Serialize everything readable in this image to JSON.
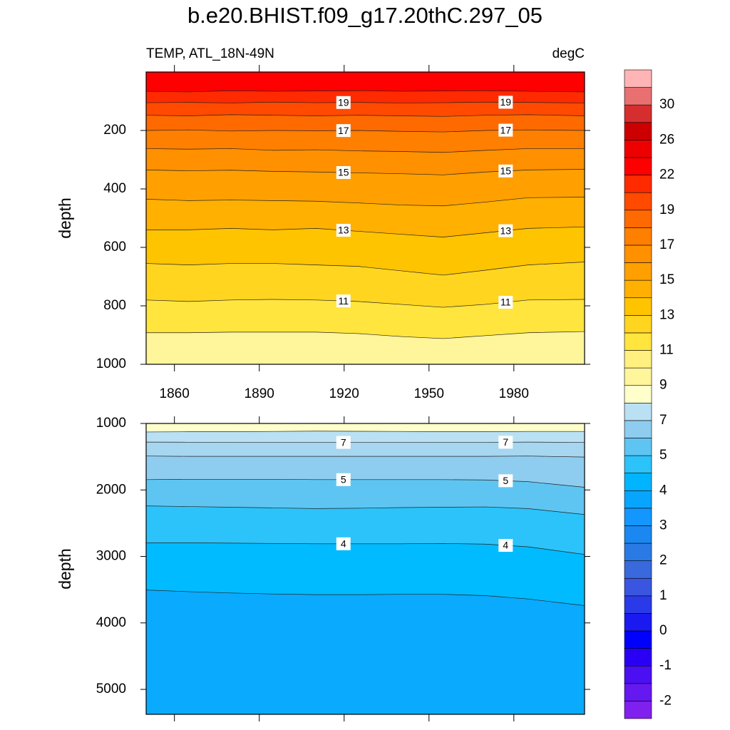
{
  "chart_data": {
    "type": "contour",
    "title": "b.e20.BHIST.f09_g17.20thC.297_05",
    "subtitle_left": "TEMP, ATL_18N-49N",
    "subtitle_right": "degC",
    "panels": [
      {
        "ylabel": "depth",
        "xlim": [
          1850,
          2005
        ],
        "ylim": [
          0,
          1000
        ],
        "xticks": [
          1860,
          1890,
          1920,
          1950,
          1980
        ],
        "yticks": [
          200,
          400,
          600,
          800,
          1000
        ],
        "xtick_labels": true,
        "x": [
          1850,
          1865,
          1880,
          1895,
          1910,
          1925,
          1940,
          1955,
          1970,
          1985,
          2005
        ],
        "top_fill": "#ff0000",
        "contours": [
          {
            "level": 20,
            "labeled": false,
            "fill": "#ff2a00",
            "values": [
              66,
              68,
              64,
              66,
              65,
              64,
              66,
              65,
              64,
              66,
              68
            ]
          },
          {
            "level": 19,
            "labeled": true,
            "fill": "#ff4a00",
            "values": [
              105,
              104,
              106,
              103,
              105,
              104,
              106,
              105,
              103,
              104,
              106
            ]
          },
          {
            "level": 18,
            "labeled": false,
            "fill": "#ff6a00",
            "values": [
              148,
              150,
              146,
              148,
              150,
              148,
              150,
              152,
              148,
              146,
              150
            ]
          },
          {
            "level": 17,
            "labeled": true,
            "fill": "#ff7f00",
            "values": [
              200,
              198,
              202,
              200,
              201,
              200,
              203,
              205,
              200,
              198,
              200
            ]
          },
          {
            "level": 16,
            "labeled": false,
            "fill": "#ff9000",
            "values": [
              262,
              264,
              262,
              268,
              266,
              270,
              272,
              275,
              268,
              262,
              262
            ]
          },
          {
            "level": 15,
            "labeled": true,
            "fill": "#ffa000",
            "values": [
              335,
              338,
              336,
              340,
              342,
              345,
              348,
              352,
              342,
              335,
              333
            ]
          },
          {
            "level": 14,
            "labeled": false,
            "fill": "#ffb000",
            "values": [
              435,
              440,
              438,
              440,
              442,
              448,
              455,
              458,
              445,
              430,
              428
            ]
          },
          {
            "level": 13,
            "labeled": true,
            "fill": "#ffc400",
            "values": [
              540,
              540,
              535,
              540,
              535,
              545,
              555,
              565,
              550,
              535,
              530
            ]
          },
          {
            "level": 12,
            "labeled": false,
            "fill": "#ffd520",
            "values": [
              655,
              660,
              655,
              655,
              660,
              665,
              680,
              695,
              678,
              660,
              650
            ]
          },
          {
            "level": 11,
            "labeled": true,
            "fill": "#ffe53d",
            "values": [
              780,
              785,
              780,
              778,
              780,
              785,
              795,
              805,
              795,
              780,
              778
            ]
          },
          {
            "level": 10,
            "labeled": false,
            "fill": "#fff59a",
            "values": [
              892,
              892,
              890,
              890,
              890,
              895,
              905,
              912,
              902,
              892,
              888
            ]
          }
        ]
      },
      {
        "ylabel": "depth",
        "xlim": [
          1850,
          2005
        ],
        "ylim": [
          1000,
          5375
        ],
        "xticks": [
          1860,
          1890,
          1920,
          1950,
          1980
        ],
        "yticks": [
          1000,
          2000,
          3000,
          4000,
          5000
        ],
        "xtick_labels": false,
        "x": [
          1850,
          1865,
          1880,
          1895,
          1910,
          1925,
          1940,
          1955,
          1970,
          1985,
          2005
        ],
        "top_fill": "#ffffcc",
        "contours": [
          {
            "level": 8,
            "labeled": false,
            "fill": "#b9e1f3",
            "values": [
              1128,
              1125,
              1125,
              1120,
              1115,
              1118,
              1120,
              1125,
              1125,
              1120,
              1120
            ]
          },
          {
            "level": 7,
            "labeled": true,
            "fill": "#a6d6f0",
            "values": [
              1280,
              1282,
              1285,
              1285,
              1285,
              1285,
              1285,
              1285,
              1285,
              1280,
              1285
            ]
          },
          {
            "level": 6,
            "labeled": false,
            "fill": "#8ecdef",
            "values": [
              1490,
              1495,
              1495,
              1495,
              1495,
              1495,
              1495,
              1495,
              1495,
              1490,
              1505
            ]
          },
          {
            "level": 5,
            "labeled": true,
            "fill": "#5ec5f2",
            "values": [
              1845,
              1840,
              1840,
              1840,
              1845,
              1845,
              1845,
              1845,
              1850,
              1875,
              1960
            ]
          },
          {
            "level": 4.5,
            "labeled": false,
            "fill": "#2bc3fa",
            "values": [
              2240,
              2250,
              2260,
              2270,
              2280,
              2275,
              2265,
              2260,
              2255,
              2280,
              2370
            ]
          },
          {
            "level": 4,
            "labeled": true,
            "fill": "#00bbff",
            "values": [
              2795,
              2795,
              2800,
              2805,
              2810,
              2810,
              2810,
              2805,
              2815,
              2855,
              2970
            ]
          },
          {
            "level": 3.5,
            "labeled": false,
            "fill": "#0aaaff",
            "values": [
              3505,
              3530,
              3550,
              3565,
              3575,
              3575,
              3570,
              3570,
              3590,
              3640,
              3740
            ]
          }
        ]
      }
    ],
    "colorbar": {
      "colors": [
        "#8020ee",
        "#6618f0",
        "#4a10f2",
        "#2a00f5",
        "#0000ff",
        "#1a1af0",
        "#2a3ae8",
        "#3a55e0",
        "#3a68dd",
        "#2a7ae5",
        "#1a88f0",
        "#1496ff",
        "#08a5ff",
        "#00b4ff",
        "#2bc3fa",
        "#5ec5f2",
        "#8ecdef",
        "#b9e1f3",
        "#ffffcc",
        "#fff59a",
        "#fff080",
        "#ffe53d",
        "#ffd520",
        "#ffc400",
        "#ffb000",
        "#ffa000",
        "#ff9000",
        "#ff7f00",
        "#ff6a00",
        "#ff4a00",
        "#ff2a00",
        "#ff0000",
        "#ee0000",
        "#cc0000",
        "#d62e2e",
        "#e87070",
        "#ffb5b5"
      ],
      "labels": [
        -2,
        -1,
        0,
        1,
        2,
        3,
        4,
        5,
        7,
        9,
        11,
        13,
        15,
        17,
        19,
        22,
        26,
        30
      ]
    }
  }
}
